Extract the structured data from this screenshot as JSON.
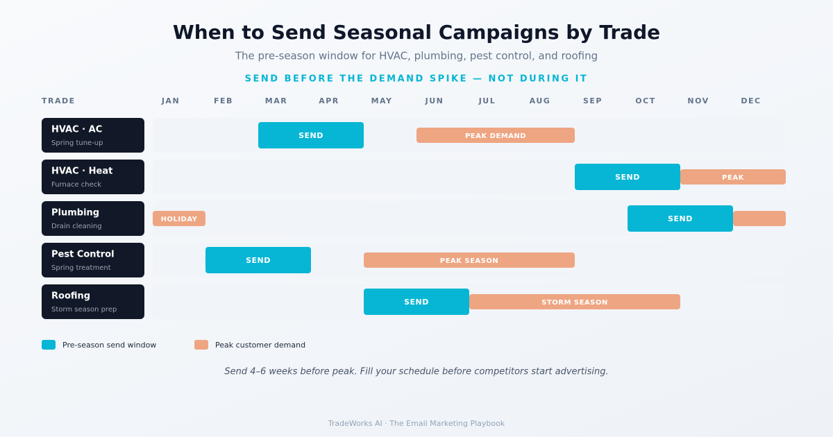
{
  "header": {
    "title": "When to Send Seasonal Campaigns by Trade",
    "subtitle": "The pre-season window for HVAC, plumbing, pest control, and roofing",
    "tagline": "SEND BEFORE THE DEMAND SPIKE — NOT DURING IT"
  },
  "trade_heading": "TRADE",
  "months": [
    "JAN",
    "FEB",
    "MAR",
    "APR",
    "MAY",
    "JUN",
    "JUL",
    "AUG",
    "SEP",
    "OCT",
    "NOV",
    "DEC"
  ],
  "bar_colors": {
    "send": "#06b6d4",
    "peak": "#eea582"
  },
  "rows": [
    {
      "name": "HVAC · AC",
      "sub": "Spring tune-up",
      "bars": [
        {
          "kind": "send",
          "start": 3,
          "end": 4,
          "label": "SEND"
        },
        {
          "kind": "peak",
          "start": 6,
          "end": 8,
          "label": "PEAK DEMAND"
        }
      ]
    },
    {
      "name": "HVAC · Heat",
      "sub": "Furnace check",
      "bars": [
        {
          "kind": "send",
          "start": 9,
          "end": 10,
          "label": "SEND"
        },
        {
          "kind": "peak",
          "start": 11,
          "end": 12,
          "label": "PEAK"
        }
      ]
    },
    {
      "name": "Plumbing",
      "sub": "Drain cleaning",
      "bars": [
        {
          "kind": "peak",
          "start": 1,
          "end": 1,
          "label": "HOLIDAY"
        },
        {
          "kind": "send",
          "start": 10,
          "end": 11,
          "label": "SEND"
        },
        {
          "kind": "peak",
          "start": 12,
          "end": 12
        }
      ]
    },
    {
      "name": "Pest Control",
      "sub": "Spring treatment",
      "bars": [
        {
          "kind": "send",
          "start": 2,
          "end": 3,
          "label": "SEND"
        },
        {
          "kind": "peak",
          "start": 5,
          "end": 8,
          "label": "PEAK SEASON"
        }
      ]
    },
    {
      "name": "Roofing",
      "sub": "Storm season prep",
      "bars": [
        {
          "kind": "send",
          "start": 5,
          "end": 6,
          "label": "SEND"
        },
        {
          "kind": "peak",
          "start": 7,
          "end": 10,
          "label": "STORM SEASON"
        }
      ]
    }
  ],
  "legend": [
    {
      "kind": "send",
      "label": "Pre-season send window"
    },
    {
      "kind": "peak",
      "label": "Peak customer demand"
    }
  ],
  "note": "Send 4–6 weeks before peak. Fill your schedule before competitors start advertising.",
  "footer": "TradeWorks AI · The Email Marketing Playbook"
}
